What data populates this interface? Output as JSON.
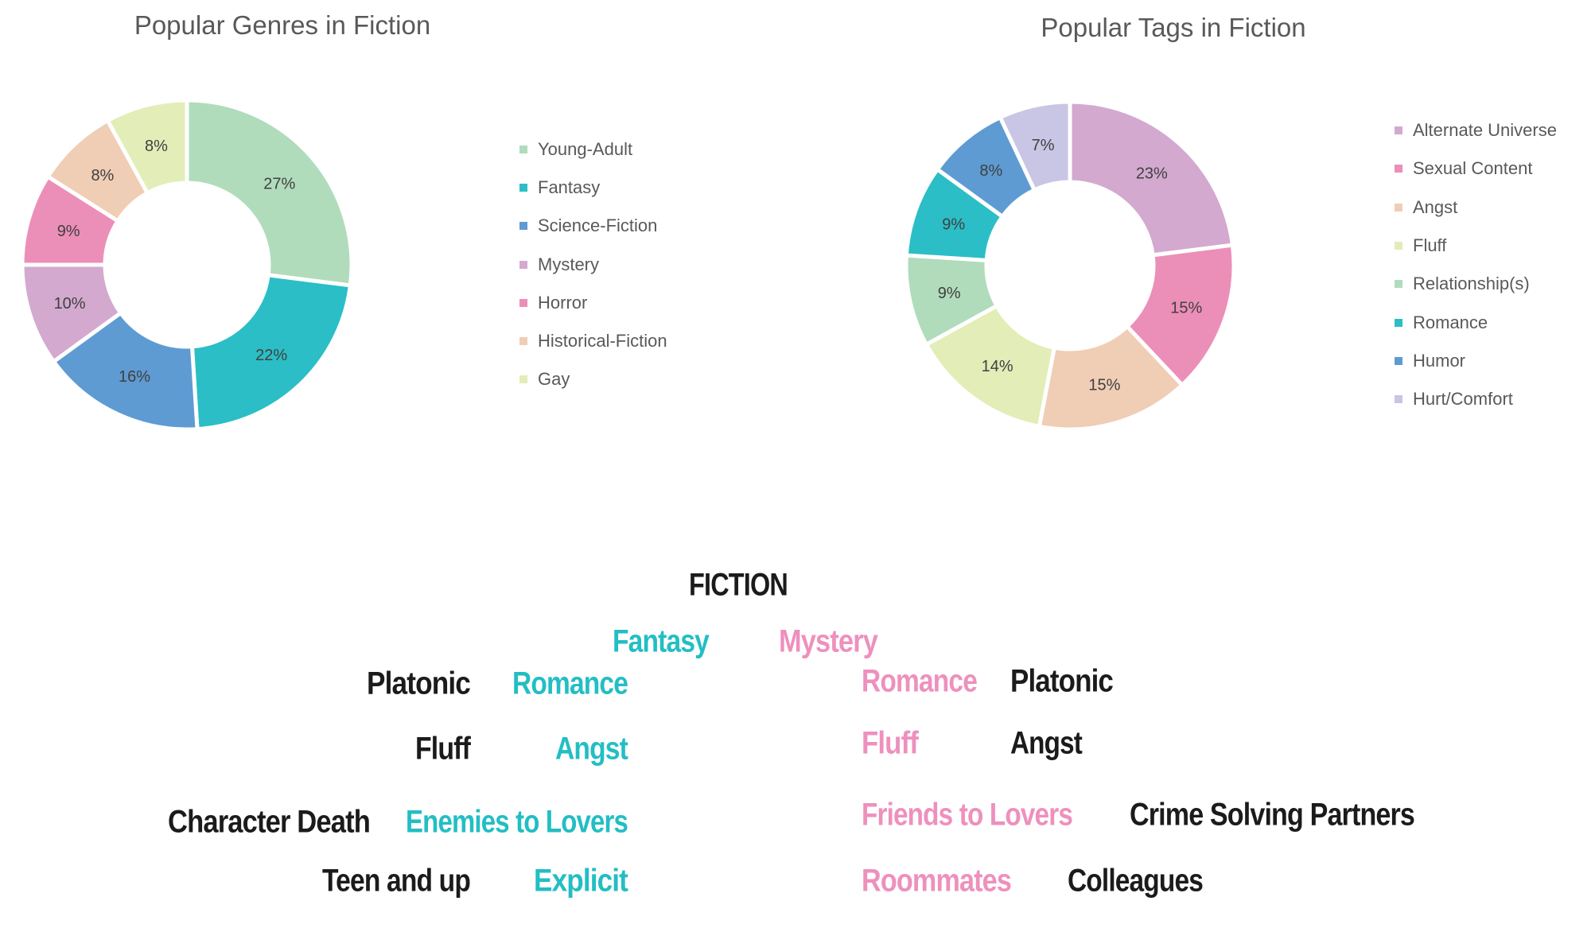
{
  "chart_data": [
    {
      "type": "pie",
      "variant": "donut",
      "title": "Popular Genres in Fiction",
      "legend_position": "right",
      "categories": [
        "Young-Adult",
        "Fantasy",
        "Science-Fiction",
        "Mystery",
        "Horror",
        "Historical-Fiction",
        "Gay"
      ],
      "values": [
        27,
        22,
        16,
        10,
        9,
        8,
        8
      ],
      "labels": [
        "27%",
        "22%",
        "16%",
        "10%",
        "9%",
        "8%",
        "8%"
      ],
      "colors": [
        "#b0dcbc",
        "#2bbec6",
        "#5e9bd2",
        "#d3a9d0",
        "#eb8fb8",
        "#f0cdb5",
        "#e3edb8"
      ]
    },
    {
      "type": "pie",
      "variant": "donut",
      "title": "Popular Tags in Fiction",
      "legend_position": "right",
      "categories": [
        "Alternate Universe",
        "Sexual Content",
        "Angst",
        "Fluff",
        "Relationship(s)",
        "Romance",
        "Humor",
        "Hurt/Comfort"
      ],
      "values": [
        23,
        15,
        15,
        14,
        9,
        9,
        8,
        7
      ],
      "labels": [
        "23%",
        "15%",
        "15%",
        "14%",
        "9%",
        "9%",
        "8%",
        "7%"
      ],
      "colors": [
        "#d3a9d0",
        "#eb8fb8",
        "#f0cdb5",
        "#e3edb8",
        "#b0dcbc",
        "#2bbec6",
        "#5e9bd2",
        "#c8c6e4"
      ]
    }
  ],
  "word_map": {
    "title": "FICTION",
    "genres": {
      "left": "Fantasy",
      "right": "Mystery"
    },
    "left_pairs": [
      [
        "Platonic",
        "Romance"
      ],
      [
        "Fluff",
        "Angst"
      ],
      [
        "Character Death",
        "Enemies to Lovers"
      ],
      [
        "Teen and up",
        "Explicit"
      ]
    ],
    "right_pairs": [
      [
        "Romance",
        "Platonic"
      ],
      [
        "Fluff",
        "Angst"
      ],
      [
        "Friends to Lovers",
        "Crime Solving Partners"
      ],
      [
        "Roommates",
        "Colleagues"
      ]
    ],
    "colors": {
      "teal": "#22bec4",
      "pink": "#ee90bd",
      "black": "#1b1b1b"
    }
  }
}
